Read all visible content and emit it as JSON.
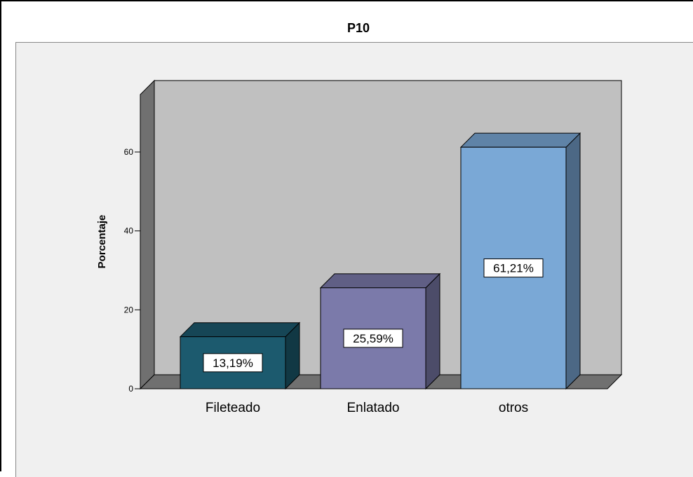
{
  "chart_data": {
    "type": "bar",
    "title": "P10",
    "ylabel": "Porcentaje",
    "xlabel": "",
    "categories": [
      "Fileteado",
      "Enlatado",
      "otros"
    ],
    "values": [
      13.19,
      25.59,
      61.21
    ],
    "data_labels": [
      "13,19%",
      "25,59%",
      "61,21%"
    ],
    "ylim": [
      0,
      70
    ],
    "yticks": [
      0,
      20,
      40,
      60
    ],
    "ytick_labels": [
      "0",
      "20",
      "40",
      "60"
    ],
    "grid": false,
    "colors": {
      "bars": [
        "#1c5a6e",
        "#7b7aaa",
        "#7aa8d6"
      ],
      "wall_back": "#c0c0c0",
      "wall_side": "#707070",
      "floor": "#707070",
      "plot_background": "#f0f0f0"
    }
  }
}
